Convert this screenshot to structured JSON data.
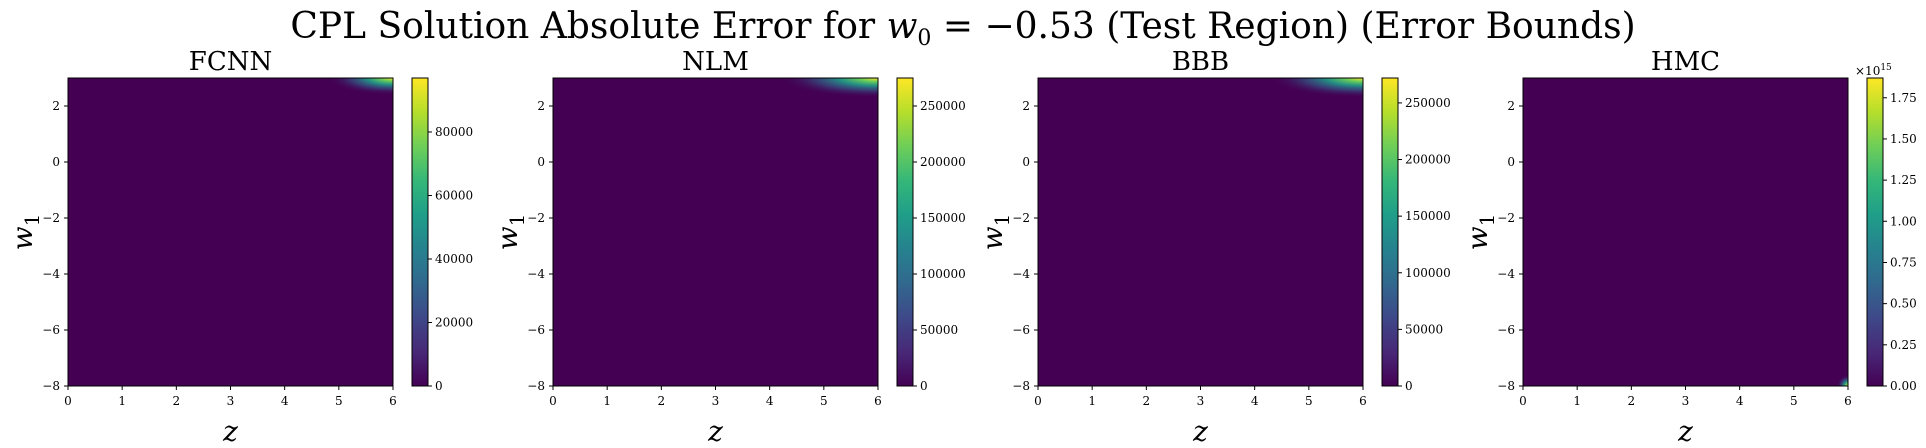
{
  "figure": {
    "title_text": "CPL Solution Absolute Error for ",
    "title_math_w": "w",
    "title_math_sub": "0",
    "title_math_eq": " = −0.53 ",
    "title_suffix": "(Test Region) (Error Bounds)"
  },
  "colormap": [
    "#440154",
    "#482878",
    "#3e4989",
    "#31688e",
    "#26828e",
    "#1f9e89",
    "#35b779",
    "#6ece58",
    "#b5de2b",
    "#fde725"
  ],
  "chart_data": [
    {
      "type": "heatmap",
      "title": "FCNN",
      "xlabel": "z",
      "ylabel": "w",
      "ylabel_sub": "1",
      "xlim": [
        0,
        6
      ],
      "ylim": [
        -8,
        3
      ],
      "x_ticks": [
        "0",
        "1",
        "2",
        "3",
        "4",
        "5",
        "6"
      ],
      "y_ticks": [
        "−8",
        "−6",
        "−4",
        "−2",
        "0",
        "2"
      ],
      "colorbar": {
        "range": [
          0,
          97000
        ],
        "ticks": [
          "0",
          "20000",
          "40000",
          "60000",
          "80000"
        ],
        "tick_values": [
          0,
          20000,
          40000,
          60000,
          80000
        ],
        "exponent": ""
      },
      "hotspot": {
        "corner": "top-right",
        "z_span": [
          4.8,
          6
        ],
        "w1_span": [
          2.4,
          3
        ],
        "max_value": 97000
      }
    },
    {
      "type": "heatmap",
      "title": "NLM",
      "xlabel": "z",
      "ylabel": "w",
      "ylabel_sub": "1",
      "xlim": [
        0,
        6
      ],
      "ylim": [
        -8,
        3
      ],
      "x_ticks": [
        "0",
        "1",
        "2",
        "3",
        "4",
        "5",
        "6"
      ],
      "y_ticks": [
        "−8",
        "−6",
        "−4",
        "−2",
        "0",
        "2"
      ],
      "colorbar": {
        "range": [
          0,
          275000
        ],
        "ticks": [
          "0",
          "50000",
          "100000",
          "150000",
          "200000",
          "250000"
        ],
        "tick_values": [
          0,
          50000,
          100000,
          150000,
          200000,
          250000
        ],
        "exponent": ""
      },
      "hotspot": {
        "corner": "top-right",
        "z_span": [
          4.2,
          6
        ],
        "w1_span": [
          2.3,
          3
        ],
        "max_value": 275000
      }
    },
    {
      "type": "heatmap",
      "title": "BBB",
      "xlabel": "z",
      "ylabel": "w",
      "ylabel_sub": "1",
      "xlim": [
        0,
        6
      ],
      "ylim": [
        -8,
        3
      ],
      "x_ticks": [
        "0",
        "1",
        "2",
        "3",
        "4",
        "5",
        "6"
      ],
      "y_ticks": [
        "−8",
        "−6",
        "−4",
        "−2",
        "0",
        "2"
      ],
      "colorbar": {
        "range": [
          0,
          272000
        ],
        "ticks": [
          "0",
          "50000",
          "100000",
          "150000",
          "200000",
          "250000"
        ],
        "tick_values": [
          0,
          50000,
          100000,
          150000,
          200000,
          250000
        ],
        "exponent": ""
      },
      "hotspot": {
        "corner": "top-right",
        "z_span": [
          4.3,
          6
        ],
        "w1_span": [
          2.3,
          3
        ],
        "max_value": 272000
      }
    },
    {
      "type": "heatmap",
      "title": "HMC",
      "xlabel": "z",
      "ylabel": "w",
      "ylabel_sub": "1",
      "xlim": [
        0,
        6
      ],
      "ylim": [
        -8,
        3
      ],
      "x_ticks": [
        "0",
        "1",
        "2",
        "3",
        "4",
        "5",
        "6"
      ],
      "y_ticks": [
        "−8",
        "−6",
        "−4",
        "−2",
        "0",
        "2"
      ],
      "colorbar": {
        "range": [
          0,
          1.87
        ],
        "ticks": [
          "0.00",
          "0.25",
          "0.50",
          "0.75",
          "1.00",
          "1.25",
          "1.50",
          "1.75"
        ],
        "tick_values": [
          0,
          0.25,
          0.5,
          0.75,
          1.0,
          1.25,
          1.5,
          1.75
        ],
        "exponent": "15"
      },
      "hotspot": {
        "corner": "bottom-right",
        "z_span": [
          5.8,
          6
        ],
        "w1_span": [
          -8,
          -7.6
        ],
        "max_value": 1.87
      }
    }
  ]
}
